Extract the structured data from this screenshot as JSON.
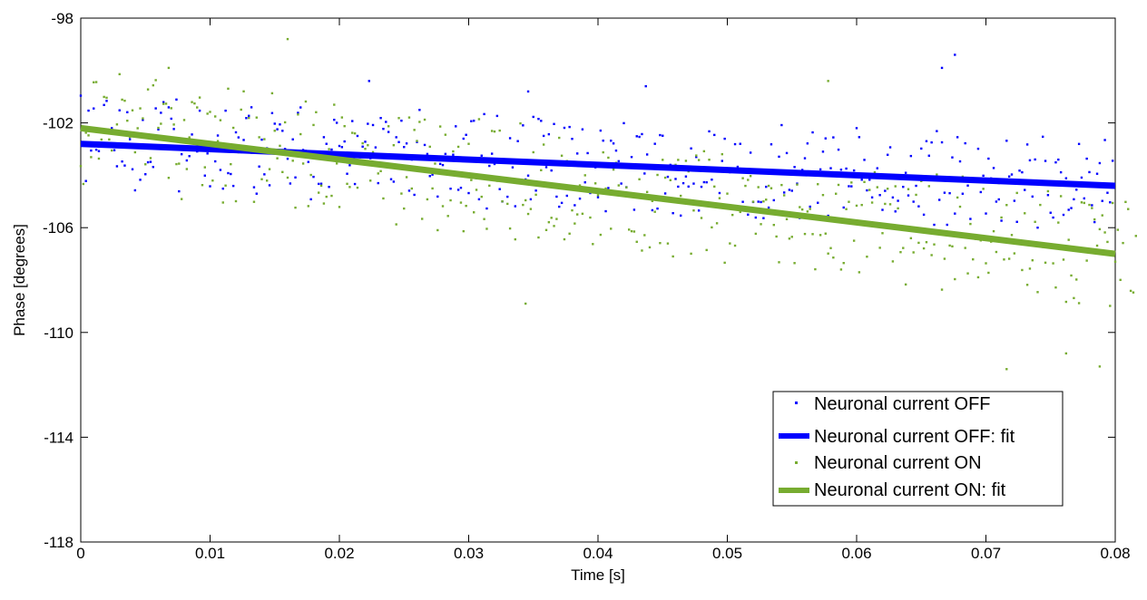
{
  "chart_data": {
    "type": "scatter",
    "xlabel": "Time [s]",
    "ylabel": "Phase [degrees]",
    "xlim": [
      0,
      0.08
    ],
    "ylim": [
      -118,
      -98
    ],
    "x_ticks": [
      "0",
      "0.01",
      "0.02",
      "0.03",
      "0.04",
      "0.05",
      "0.06",
      "0.07",
      "0.08"
    ],
    "x_tick_values": [
      0,
      0.01,
      0.02,
      0.03,
      0.04,
      0.05,
      0.06,
      0.07,
      0.08
    ],
    "y_ticks": [
      "-98",
      "-102",
      "-106",
      "-110",
      "-114",
      "-118"
    ],
    "y_tick_values": [
      -98,
      -102,
      -106,
      -110,
      -114,
      -118
    ],
    "grid": false,
    "legend_position": "bottom-right",
    "scatter_series": [
      {
        "name": "Neuronal current OFF",
        "color": "#0000ff",
        "sample_interval": 0.0002,
        "offsets": [
          1.84,
          -0.01,
          -1.41,
          1.28,
          -0.24,
          1.37,
          -0.2,
          -0.25,
          0.07,
          1.52,
          1.68,
          0.45,
          0.65,
          -0.19,
          -0.8,
          1.34,
          -0.61,
          -0.76,
          1.28,
          0.25,
          -0.89,
          -1.69,
          -0.02,
          -1.28,
          1.01,
          -1.06,
          -0.6,
          -0.58,
          -0.77,
          1.47,
          0.67,
          1.31,
          1.72,
          -0.05,
          1.53,
          1.1,
          0.71,
          1.84,
          -1.66,
          -0.24,
          0.04,
          -0.47,
          -0.3,
          0.53,
          0.3,
          -0.11,
          1.45,
          0.29,
          -1.02,
          -0.17,
          -1.42,
          0.24,
          -0.46,
          0.53,
          -0.78,
          -1.49,
          1.49,
          -0.89,
          -0.92,
          -1.37,
          0.68,
          0.49,
          -0.07,
          0.4,
          1.24,
          1.33,
          1.66,
          -1.39,
          -1.63,
          -0.59,
          0.44,
          -0.88,
          0.12,
          -1.29,
          1.47,
          1.07,
          0.86,
          1.05,
          0.81,
          0.12,
          -0.25,
          -1.19,
          0.5,
          -0.95,
          1.52,
          1.73,
          0.11,
          0.08,
          -0.34,
          -1.76,
          -0.9,
          -0.17,
          -1.16,
          -1.15,
          0.63,
          0.38,
          -1.26,
          0.17,
          1.31,
          1.2,
          0.32,
          0.28,
          0.5,
          -0.73,
          -0.4,
          1.29,
          -1.11,
          0.73,
          -0.03,
          0.33,
          0.52,
          1.21,
          -0.1,
          1.17,
          0.32,
          -1.04,
          1.45,
          1.04,
          1.31,
          0.93,
          -0.87,
          -0.96,
          0.74,
          0.56,
          1.38,
          0.38,
          0.52,
          -1.28,
          -0.09,
          -1.43,
          0.59,
          1.82,
          -0.42,
          0.49,
          0.15,
          -0.69,
          -0.63,
          -0.49,
          -1.46,
          -0.21,
          -0.25,
          0.18,
          -0.53,
          -1.14,
          0.16,
          1.25,
          -1.17,
          -1.09,
          0.79,
          0.94,
          -1.28,
          1.47,
          1.49,
          -0.7,
          -1.5,
          0.17,
          1.76,
          -1.84,
          -0.21,
          0.26,
          -0.13,
          1.71,
          -1.08,
          -1.55,
          -0.72,
          -1.36,
          0.88,
          -0.23,
          -1.71,
          0.78,
          0.06,
          1.39,
          -0.67,
          -0.52,
          -1.42,
          1.73,
          -1.08,
          1.66,
          1.59,
          1.02,
          -0.17,
          1.09,
          -0.29,
          1.49,
          -1.28,
          -1.66,
          -1.51,
          1.36,
          -1.23,
          1.4,
          0.95,
          -1.58,
          0.4,
          -1.32,
          1.33,
          -0.69,
          0.43,
          -1.09,
          0.03,
          -0.1,
          -1.24,
          1.31,
          0.93,
          -1.76,
          -0.87,
          0.94,
          0.84,
          0.57,
          0.17,
          -0.68,
          1.63,
          -0.81,
          -1.09,
          0.35,
          -1.66,
          1.15,
          1.13,
          1.24,
          -0.26,
          0.47,
          -1.1,
          -1.65,
          0.89,
          -1.58,
          1.23,
          1.21,
          -0.99,
          -0.35,
          0.11,
          -1.73,
          -0.42,
          -0.71,
          -1.81,
          -0.57,
          -0.31,
          -0.69,
          0.77,
          -0.57,
          0.45,
          -1.59,
          -0.68,
          -0.5,
          -0.5,
          1.45,
          -0.39,
          1.32,
          -1.32,
          -0.89,
          0.34,
          1.19,
          -1.45,
          -0.08,
          -1.46,
          1.0,
          0.14,
          1.02,
          -1.19,
          0.06,
          -1.67,
          0.7,
          -1.18,
          -1.77,
          -1.16,
          -1.17,
          -1.78,
          -0.58,
          -1.37,
          1.05,
          -1.08,
          -0.05,
          0.59,
          1.8,
          -0.77,
          0.74,
          -0.66,
          -0.69,
          0.22,
          -0.41,
          -1.72,
          0.12,
          0.57,
          1.14,
          -1.27,
          1.57,
          0.02,
          -1.11,
          0.17,
          0.85,
          1.36,
          -1.59,
          0.23,
          1.41,
          -1.8,
          0.95,
          0.19,
          -1.25,
          0.24,
          -0.43,
          -0.43,
          0.18,
          1.8,
          1.46,
          -0.16,
          0.6,
          -0.56,
          -0.15,
          -0.82,
          0.03,
          0.3,
          -0.72,
          -1.28,
          -0.55,
          0.83,
          1.12,
          -0.79,
          -1.32,
          -0.91,
          0.01,
          -0.37,
          0.17,
          -0.69,
          0.82,
          -0.92,
          -0.31,
          -1.09,
          1.12,
          -1.4,
          1.41,
          0.86,
          1.37,
          -1.77,
          1.81,
          -0.81,
          1.39,
          -0.53,
          -1.75,
          -0.54,
          0.83,
          -1.31,
          1.61,
          0.69,
          -0.54,
          1.39,
          -0.22,
          -1.49,
          -0.06,
          0.02,
          1.2,
          -0.45,
          0.18,
          -1.26,
          0.84,
          0.09,
          0.49,
          -0.79,
          -0.7,
          -1.51,
          -0.01,
          1.55,
          0.19,
          0.27,
          -0.73,
          -1.53,
          0.43,
          0.37,
          -0.3,
          1.44,
          0.84,
          -0.54,
          0.88,
          -1.72,
          0.02,
          1.76,
          0.84,
          -0.46,
          -1.13,
          -1.31,
          0.8,
          0.91,
          0.43,
          -1.19,
          0.21,
          -0.99,
          -0.92,
          -0.58,
          -0.21,
          1.54,
          0.26,
          -0.53,
          0.99,
          0.48,
          -0.78,
          -1.42,
          0.43,
          0.84,
          -0.6,
          1.73,
          -0.28,
          -0.64,
          0.95
        ]
      },
      {
        "name": "Neuronal current ON",
        "color": "#77ac30",
        "sample_interval": 0.0002,
        "offsets": [
          -1.45,
          -2.12,
          -0.15,
          -0.24,
          -1.06,
          1.81,
          1.83,
          -1.08,
          -0.34,
          1.3,
          1.28,
          -0.3,
          -0.71,
          -0.04,
          0.31,
          2.24,
          1.28,
          1.25,
          0.5,
          -0.11,
          0.92,
          -0.67,
          0.26,
          1.03,
          0.66,
          -1.08,
          1.79,
          -0.82,
          1.97,
          2.18,
          0.37,
          0.54,
          1.31,
          1.33,
          -1.49,
          1.18,
          0.57,
          -0.93,
          -0.9,
          -2.24,
          0.79,
          -1.07,
          0.15,
          1.51,
          1.47,
          1.33,
          1.72,
          -1.61,
          -0.92,
          1.14,
          1.22,
          -1.39,
          1.07,
          0.14,
          0.95,
          -2.18,
          -1.52,
          2.19,
          -0.68,
          0.72,
          -2.07,
          -0.19,
          1.45,
          2.16,
          -0.14,
          1.17,
          -0.15,
          -2.01,
          1.22,
          0.48,
          -1.11,
          0.43,
          -1.14,
          -0.69,
          2.22,
          0.8,
          -0.24,
          0.25,
          -0.74,
          1.17,
          -0.93,
          0.05,
          -0.26,
          -2.04,
          1.53,
          0.79,
          -0.32,
          2.06,
          -1.92,
          -0.72,
          1.2,
          1.7,
          -1.36,
          -1.08,
          -1.75,
          -1.48,
          0.35,
          -1.42,
          2.07,
          -0.16,
          -1.81,
          1.62,
          1.3,
          -0.89,
          -1.0,
          1.08,
          1.07,
          -0.99,
          0.18,
          0.73,
          0.53,
          0.68,
          -0.66,
          0.44,
          0.04,
          -0.35,
          -0.25,
          -1.28,
          -0.03,
          1.5,
          0.31,
          0.8,
          -2.21,
          1.86,
          -1.01,
          -1.57,
          -0.36,
          1.93,
          -0.77,
          1.48,
          1.07,
          1.81,
          -1.88,
          1.92,
          -1.11,
          0.91,
          -0.67,
          0.29,
          -2.24,
          1.73,
          -1.3,
          1.44,
          -1.65,
          -1.04,
          0.84,
          0.56,
          1.04,
          -1.08,
          -2.16,
          -1.18,
          1.2,
          -0.17,
          -1.39,
          -0.52,
          2.19,
          -0.76,
          -1.6,
          -1.96,
          -0.3,
          1.8,
          1.79,
          -0.08,
          1.85,
          -0.84,
          -0.07,
          -0.91,
          -1.84,
          0.05,
          -2.23,
          -0.07,
          2.22,
          -0.88,
          -0.69,
          -1.2,
          -1.0,
          1.18,
          -0.43,
          -2.05,
          0.53,
          1.52,
          -1.73,
          -1.42,
          -1.24,
          -1.54,
          -1.26,
          1.85,
          1.18,
          -2.0,
          1.0,
          -1.76,
          -0.86,
          -1.35,
          -0.99,
          0.13,
          -0.94,
          0.54,
          0.93,
          -1.05,
          -2.05,
          0.28,
          -0.16,
          -1.66,
          1.5,
          0.13,
          1.32,
          -1.38,
          0.89,
          1.16,
          0.31,
          1.0,
          0.06,
          0.27,
          -1.33,
          -1.38,
          -1.38,
          -1.76,
          0.64,
          -2.07,
          -1.47,
          0.19,
          -1.91,
          -0.13,
          -0.53,
          0.89,
          -1.7,
          1.49,
          0.82,
          -1.68,
          0.75,
          -2.15,
          1.36,
          1.56,
          0.2,
          1.3,
          1.56,
          1.17,
          -1.96,
          -0.3,
          1.81,
          1.65,
          -0.55,
          2.01,
          -1.75,
          1.71,
          -0.86,
          0.71,
          -0.68,
          0.29,
          1.98,
          -2.15,
          0.5,
          -1.39,
          -0.29,
          -1.45,
          0.03,
          -0.14,
          1.16,
          0.88,
          1.12,
          1.28,
          0.31,
          -0.9,
          0.89,
          -0.51,
          0.37,
          0.45,
          0.99,
          0.91,
          -0.48,
          -0.91,
          -1.88,
          1.08,
          0.7,
          -0.2,
          -0.93,
          -0.85,
          -1.84,
          1.17,
          0.32,
          0.24,
          -0.68,
          0.19,
          0.3,
          -0.65,
          -1.98,
          1.28,
          -0.65,
          0.89,
          -0.57,
          -1.32,
          -1.1,
          -1.45,
          1.0,
          1.35,
          -1.87,
          -1.61,
          0.46,
          0.75,
          1.5,
          -0.71,
          0.64,
          -1.89,
          0.69,
          1.58,
          -1.26,
          1.3,
          0.83,
          2.0,
          1.44,
          -0.86,
          -0.29,
          0.84,
          1.43,
          0.85,
          -1.32,
          1.56,
          0.73,
          -0.93,
          -0.76,
          -2.14,
          1.51,
          -0.35,
          -0.88,
          1.33,
          -0.49,
          1.88,
          -0.68,
          -0.43,
          1.72,
          -0.9,
          -0.48,
          2.2,
          1.98,
          -2.17,
          -0.98,
          2.07,
          -0.45,
          -0.47,
          -1.71,
          1.42,
          1.08,
          2.24,
          -0.47,
          -1.43,
          0.47,
          -0.87,
          -0.08,
          -1.53,
          -0.11,
          1.87,
          -0.96,
          -1.31,
          -0.11,
          0.3,
          -0.48,
          2.16,
          0.86,
          -0.73,
          1.36,
          -0.68,
          0.24,
          -0.45,
          1.87,
          2.23,
          -1.05,
          1.13,
          -1.59,
          -0.96,
          -0.63,
          0.85,
          -1.82,
          1.52,
          -0.07,
          -0.66,
          2.08,
          -0.04,
          -0.65,
          -1.56,
          0.93,
          1.95,
          -0.46,
          -2.06,
          0.32,
          -1.03,
          -1.88,
          -1.16,
          -2.05,
          1.81,
          1.8,
          -0.39,
          1.75,
          1.64,
          1.22,
          0.23,
          0.87,
          1.41,
          0.77,
          0.42,
          -2.01,
          1.93,
          -0.3,
          0.93,
          -0.97,
          0.45,
          2.03,
          1.77,
          -1.34,
          -1.39,
          0.78
        ]
      }
    ],
    "outlier_points": [
      {
        "series": "Neuronal current OFF",
        "x": 0.0676,
        "y": -99.4
      },
      {
        "series": "Neuronal current OFF",
        "x": 0.0666,
        "y": -99.9
      },
      {
        "series": "Neuronal current OFF",
        "x": 0.0346,
        "y": -100.8
      },
      {
        "series": "Neuronal current OFF",
        "x": 0.0437,
        "y": -100.6
      },
      {
        "series": "Neuronal current OFF",
        "x": 0.0223,
        "y": -100.4
      },
      {
        "series": "Neuronal current ON",
        "x": 0.016,
        "y": -98.8
      },
      {
        "series": "Neuronal current ON",
        "x": 0.0068,
        "y": -99.9
      },
      {
        "series": "Neuronal current ON",
        "x": 0.0578,
        "y": -100.4
      },
      {
        "series": "Neuronal current ON",
        "x": 0.0716,
        "y": -111.4
      },
      {
        "series": "Neuronal current ON",
        "x": 0.0762,
        "y": -110.8
      },
      {
        "series": "Neuronal current ON",
        "x": 0.0788,
        "y": -111.3
      },
      {
        "series": "Neuronal current ON",
        "x": 0.0344,
        "y": -108.9
      }
    ],
    "fit_series": [
      {
        "name": "Neuronal current OFF: fit",
        "color": "#0000ff",
        "x": [
          0,
          0.08
        ],
        "y": [
          -102.8,
          -104.4
        ]
      },
      {
        "name": "Neuronal current ON: fit",
        "color": "#77ac30",
        "x": [
          0,
          0.08
        ],
        "y": [
          -102.2,
          -107.0
        ]
      }
    ]
  }
}
